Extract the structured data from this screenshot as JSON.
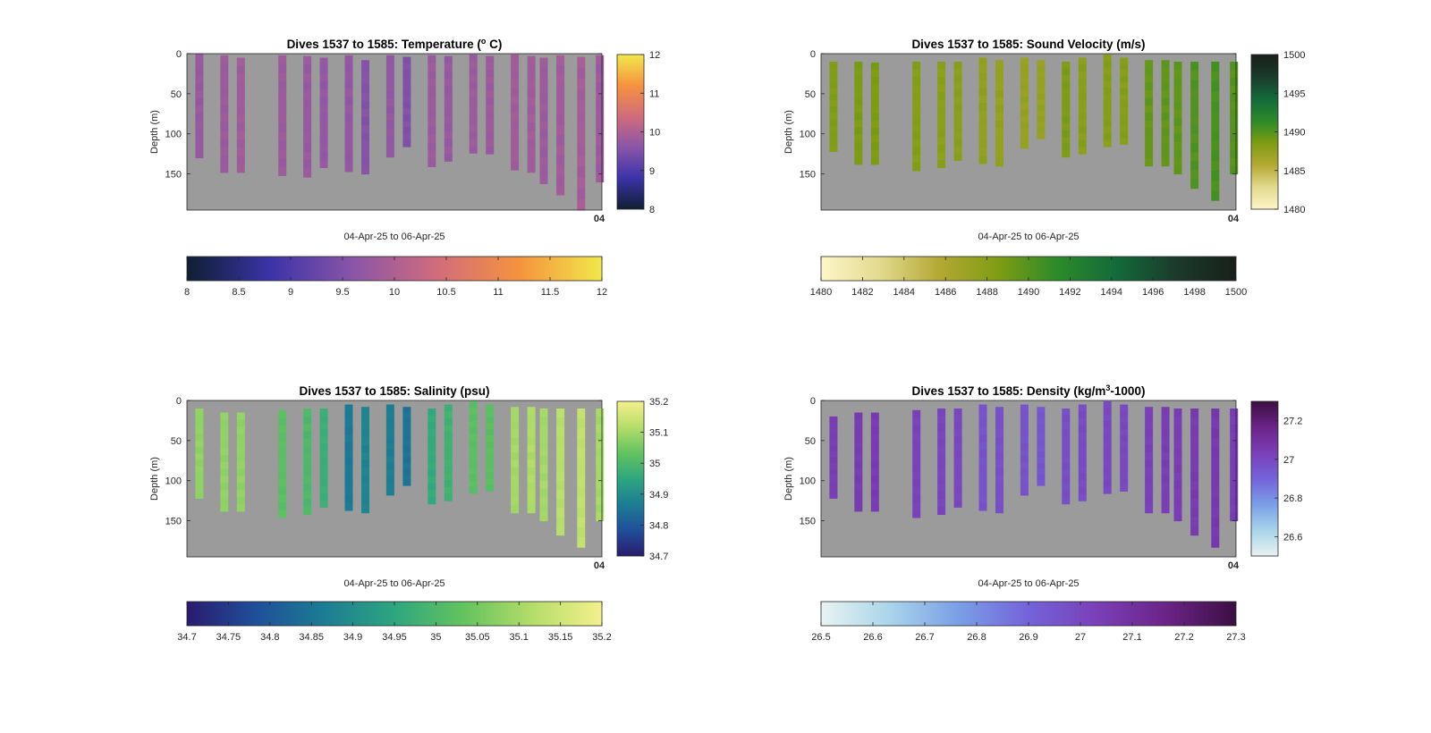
{
  "chart_data": [
    {
      "type": "heatmap",
      "title_main": "Dives 1537 to 1585: Temperature (",
      "title_sup": "o",
      "title_rest": " C)",
      "xlabel": "04-Apr-25 to 06-Apr-25",
      "ylabel": "Depth (m)",
      "yticks": [
        0,
        50,
        100,
        150
      ],
      "ylim": [
        0,
        195
      ],
      "xtick_label": "04",
      "clim": [
        8,
        12
      ],
      "colormap": [
        "#0f1f33",
        "#3b33a8",
        "#8a55a8",
        "#d06c7c",
        "#f5923e",
        "#f2e84a"
      ],
      "side_colorbar_ticks": [
        8,
        9,
        10,
        11,
        12
      ],
      "bottom_colorbar_ticks": [
        8,
        8.5,
        9,
        9.5,
        10,
        10.5,
        11,
        11.5,
        12
      ],
      "profiles": [
        {
          "x": 0.03,
          "top": 0,
          "bottom": 130,
          "value": 9.75
        },
        {
          "x": 0.09,
          "top": 2,
          "bottom": 148,
          "value": 9.8
        },
        {
          "x": 0.13,
          "top": 5,
          "bottom": 148,
          "value": 9.85
        },
        {
          "x": 0.23,
          "top": 2,
          "bottom": 152,
          "value": 9.8
        },
        {
          "x": 0.29,
          "top": 3,
          "bottom": 154,
          "value": 9.75
        },
        {
          "x": 0.33,
          "top": 5,
          "bottom": 142,
          "value": 9.7
        },
        {
          "x": 0.39,
          "top": 2,
          "bottom": 147,
          "value": 9.7
        },
        {
          "x": 0.43,
          "top": 8,
          "bottom": 150,
          "value": 9.55
        },
        {
          "x": 0.49,
          "top": 2,
          "bottom": 129,
          "value": 9.7
        },
        {
          "x": 0.53,
          "top": 4,
          "bottom": 116,
          "value": 9.5
        },
        {
          "x": 0.59,
          "top": 2,
          "bottom": 141,
          "value": 9.8
        },
        {
          "x": 0.63,
          "top": 3,
          "bottom": 134,
          "value": 9.75
        },
        {
          "x": 0.69,
          "top": 1,
          "bottom": 124,
          "value": 9.8
        },
        {
          "x": 0.73,
          "top": 3,
          "bottom": 125,
          "value": 9.8
        },
        {
          "x": 0.79,
          "top": 1,
          "bottom": 145,
          "value": 9.85
        },
        {
          "x": 0.83,
          "top": 3,
          "bottom": 148,
          "value": 9.85
        },
        {
          "x": 0.86,
          "top": 5,
          "bottom": 162,
          "value": 9.8
        },
        {
          "x": 0.9,
          "top": 2,
          "bottom": 176,
          "value": 9.85
        },
        {
          "x": 0.95,
          "top": 4,
          "bottom": 195,
          "value": 9.9
        },
        {
          "x": 0.995,
          "top": 2,
          "bottom": 160,
          "value": 9.8
        }
      ]
    },
    {
      "type": "heatmap",
      "title_main": "Dives 1537 to 1585: Sound Velocity (m/s)",
      "title_sup": "",
      "title_rest": "",
      "xlabel": "04-Apr-25 to 06-Apr-25",
      "ylabel": "Depth (m)",
      "yticks": [
        0,
        50,
        100,
        150
      ],
      "ylim": [
        0,
        195
      ],
      "xtick_label": "04",
      "clim": [
        1480,
        1500
      ],
      "colormap": [
        "#fdf6c8",
        "#e2d98e",
        "#b3a833",
        "#7e9c13",
        "#2b8a2a",
        "#136a3a",
        "#1b3a2b",
        "#18201a"
      ],
      "side_colorbar_ticks": [
        1480,
        1485,
        1490,
        1495,
        1500
      ],
      "bottom_colorbar_ticks": [
        1480,
        1482,
        1484,
        1486,
        1488,
        1490,
        1492,
        1494,
        1496,
        1498,
        1500
      ],
      "profiles": [
        {
          "x": 0.03,
          "top": 10,
          "bottom": 122,
          "value": 1488.4
        },
        {
          "x": 0.09,
          "top": 10,
          "bottom": 138,
          "value": 1488.6
        },
        {
          "x": 0.13,
          "top": 11,
          "bottom": 138,
          "value": 1488.6
        },
        {
          "x": 0.23,
          "top": 10,
          "bottom": 146,
          "value": 1488.2
        },
        {
          "x": 0.29,
          "top": 10,
          "bottom": 142,
          "value": 1487.9
        },
        {
          "x": 0.33,
          "top": 10,
          "bottom": 133,
          "value": 1487.9
        },
        {
          "x": 0.39,
          "top": 5,
          "bottom": 137,
          "value": 1487.6
        },
        {
          "x": 0.43,
          "top": 8,
          "bottom": 140,
          "value": 1487.4
        },
        {
          "x": 0.49,
          "top": 5,
          "bottom": 118,
          "value": 1487.3
        },
        {
          "x": 0.53,
          "top": 8,
          "bottom": 106,
          "value": 1487.3
        },
        {
          "x": 0.59,
          "top": 10,
          "bottom": 129,
          "value": 1488.6
        },
        {
          "x": 0.63,
          "top": 5,
          "bottom": 125,
          "value": 1488.0
        },
        {
          "x": 0.69,
          "top": 1,
          "bottom": 116,
          "value": 1488.2
        },
        {
          "x": 0.73,
          "top": 5,
          "bottom": 113,
          "value": 1488.2
        },
        {
          "x": 0.79,
          "top": 8,
          "bottom": 140,
          "value": 1489.4
        },
        {
          "x": 0.83,
          "top": 8,
          "bottom": 140,
          "value": 1489.6
        },
        {
          "x": 0.86,
          "top": 10,
          "bottom": 150,
          "value": 1489.6
        },
        {
          "x": 0.9,
          "top": 10,
          "bottom": 168,
          "value": 1490.1
        },
        {
          "x": 0.95,
          "top": 10,
          "bottom": 183,
          "value": 1490.4
        },
        {
          "x": 0.995,
          "top": 10,
          "bottom": 150,
          "value": 1490.0
        }
      ]
    },
    {
      "type": "heatmap",
      "title_main": "Dives 1537 to 1585: Salinity (psu)",
      "title_sup": "",
      "title_rest": "",
      "xlabel": "04-Apr-25 to 06-Apr-25",
      "ylabel": "Depth (m)",
      "yticks": [
        0,
        50,
        100,
        150
      ],
      "ylim": [
        0,
        195
      ],
      "xtick_label": "04",
      "clim": [
        34.7,
        35.2
      ],
      "colormap": [
        "#2a1b6e",
        "#1f4f9a",
        "#1c7d93",
        "#2ea67f",
        "#63c35e",
        "#b5dd6a",
        "#f5f08c"
      ],
      "side_colorbar_ticks": [
        34.7,
        34.8,
        34.9,
        35,
        35.1,
        35.2
      ],
      "bottom_colorbar_ticks": [
        34.7,
        34.75,
        34.8,
        34.85,
        34.9,
        34.95,
        35,
        35.05,
        35.1,
        35.15,
        35.2
      ],
      "profiles": [
        {
          "x": 0.03,
          "top": 10,
          "bottom": 122,
          "value": 35.08
        },
        {
          "x": 0.09,
          "top": 15,
          "bottom": 138,
          "value": 35.08
        },
        {
          "x": 0.13,
          "top": 15,
          "bottom": 138,
          "value": 35.08
        },
        {
          "x": 0.23,
          "top": 12,
          "bottom": 146,
          "value": 35.02
        },
        {
          "x": 0.29,
          "top": 10,
          "bottom": 142,
          "value": 35.0
        },
        {
          "x": 0.33,
          "top": 10,
          "bottom": 133,
          "value": 34.97
        },
        {
          "x": 0.39,
          "top": 5,
          "bottom": 137,
          "value": 34.86
        },
        {
          "x": 0.43,
          "top": 8,
          "bottom": 140,
          "value": 34.88
        },
        {
          "x": 0.49,
          "top": 5,
          "bottom": 118,
          "value": 34.87
        },
        {
          "x": 0.53,
          "top": 8,
          "bottom": 106,
          "value": 34.85
        },
        {
          "x": 0.59,
          "top": 10,
          "bottom": 129,
          "value": 34.96
        },
        {
          "x": 0.63,
          "top": 5,
          "bottom": 125,
          "value": 34.98
        },
        {
          "x": 0.69,
          "top": 1,
          "bottom": 116,
          "value": 35.02
        },
        {
          "x": 0.73,
          "top": 5,
          "bottom": 113,
          "value": 35.02
        },
        {
          "x": 0.79,
          "top": 8,
          "bottom": 140,
          "value": 35.1
        },
        {
          "x": 0.83,
          "top": 8,
          "bottom": 140,
          "value": 35.11
        },
        {
          "x": 0.86,
          "top": 10,
          "bottom": 150,
          "value": 35.1
        },
        {
          "x": 0.9,
          "top": 10,
          "bottom": 168,
          "value": 35.12
        },
        {
          "x": 0.95,
          "top": 10,
          "bottom": 183,
          "value": 35.13
        },
        {
          "x": 0.995,
          "top": 10,
          "bottom": 150,
          "value": 35.1
        }
      ]
    },
    {
      "type": "heatmap",
      "title_main": "Dives 1537 to 1585: Density (kg/m",
      "title_sup": "3",
      "title_rest": "-1000)",
      "xlabel": "04-Apr-25 to 06-Apr-25",
      "ylabel": "Depth (m)",
      "yticks": [
        0,
        50,
        100,
        150
      ],
      "ylim": [
        0,
        195
      ],
      "xtick_label": "04",
      "clim": [
        26.5,
        27.3
      ],
      "colormap": [
        "#e8f3f2",
        "#a9d4ea",
        "#7a9ee6",
        "#7463da",
        "#7a3fb7",
        "#6b2387",
        "#3b0f42"
      ],
      "side_colorbar_ticks": [
        26.6,
        26.8,
        27,
        27.2
      ],
      "side_colorbar_lim": [
        26.5,
        27.3
      ],
      "bottom_colorbar_ticks": [
        26.5,
        26.6,
        26.7,
        26.8,
        26.9,
        27,
        27.1,
        27.2,
        27.3
      ],
      "profiles": [
        {
          "x": 0.03,
          "top": 20,
          "bottom": 122,
          "value": 27.04
        },
        {
          "x": 0.09,
          "top": 15,
          "bottom": 138,
          "value": 27.05
        },
        {
          "x": 0.13,
          "top": 15,
          "bottom": 138,
          "value": 27.05
        },
        {
          "x": 0.23,
          "top": 12,
          "bottom": 146,
          "value": 27.02
        },
        {
          "x": 0.29,
          "top": 10,
          "bottom": 142,
          "value": 27.01
        },
        {
          "x": 0.33,
          "top": 10,
          "bottom": 133,
          "value": 27.0
        },
        {
          "x": 0.39,
          "top": 5,
          "bottom": 137,
          "value": 26.96
        },
        {
          "x": 0.43,
          "top": 8,
          "bottom": 140,
          "value": 26.97
        },
        {
          "x": 0.49,
          "top": 5,
          "bottom": 118,
          "value": 26.96
        },
        {
          "x": 0.53,
          "top": 8,
          "bottom": 106,
          "value": 26.95
        },
        {
          "x": 0.59,
          "top": 10,
          "bottom": 129,
          "value": 26.98
        },
        {
          "x": 0.63,
          "top": 5,
          "bottom": 125,
          "value": 26.99
        },
        {
          "x": 0.69,
          "top": 1,
          "bottom": 116,
          "value": 27.0
        },
        {
          "x": 0.73,
          "top": 5,
          "bottom": 113,
          "value": 27.0
        },
        {
          "x": 0.79,
          "top": 8,
          "bottom": 140,
          "value": 27.03
        },
        {
          "x": 0.83,
          "top": 8,
          "bottom": 140,
          "value": 27.04
        },
        {
          "x": 0.86,
          "top": 10,
          "bottom": 150,
          "value": 27.04
        },
        {
          "x": 0.9,
          "top": 10,
          "bottom": 168,
          "value": 27.05
        },
        {
          "x": 0.95,
          "top": 10,
          "bottom": 183,
          "value": 27.06
        },
        {
          "x": 0.995,
          "top": 10,
          "bottom": 150,
          "value": 27.04
        }
      ]
    }
  ]
}
